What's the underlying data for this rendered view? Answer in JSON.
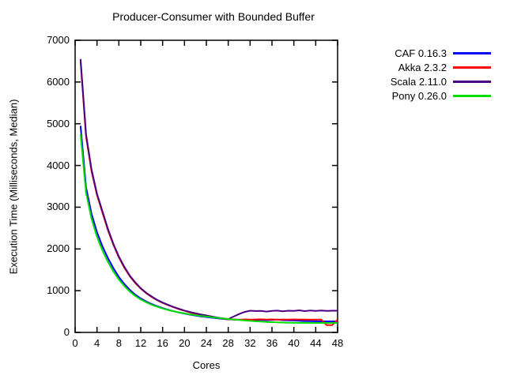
{
  "chart_data": {
    "type": "line",
    "title": "Producer-Consumer with Bounded Buffer",
    "xlabel": "Cores",
    "ylabel": "Execution Time (Milliseconds, Median)",
    "xlim": [
      0,
      48
    ],
    "ylim": [
      0,
      7000
    ],
    "xticks": [
      0,
      4,
      8,
      12,
      16,
      20,
      24,
      28,
      32,
      36,
      40,
      44,
      48
    ],
    "yticks": [
      0,
      1000,
      2000,
      3000,
      4000,
      5000,
      6000,
      7000
    ],
    "grid": false,
    "legend_position": "outside-right",
    "border_color": "#000000",
    "x": [
      1,
      2,
      3,
      4,
      5,
      6,
      7,
      8,
      9,
      10,
      11,
      12,
      13,
      14,
      15,
      16,
      17,
      18,
      19,
      20,
      21,
      22,
      23,
      24,
      25,
      26,
      27,
      28,
      29,
      30,
      31,
      32,
      33,
      34,
      35,
      36,
      37,
      38,
      39,
      40,
      41,
      42,
      43,
      44,
      45,
      46,
      47,
      48
    ],
    "series": [
      {
        "name": "CAF 0.16.3",
        "color": "#0000ff",
        "values": [
          4950,
          3480,
          2840,
          2400,
          2060,
          1780,
          1540,
          1330,
          1160,
          1020,
          905,
          815,
          740,
          680,
          628,
          583,
          543,
          508,
          477,
          450,
          425,
          403,
          383,
          368,
          352,
          338,
          324,
          312,
          306,
          304,
          300,
          296,
          298,
          300,
          294,
          299,
          307,
          294,
          290,
          285,
          278,
          272,
          268,
          266,
          265,
          264,
          264,
          263
        ]
      },
      {
        "name": "Akka 2.3.2",
        "color": "#ff0000",
        "values": [
          6500,
          4700,
          3860,
          3290,
          2870,
          2450,
          2100,
          1800,
          1550,
          1345,
          1185,
          1050,
          940,
          850,
          772,
          708,
          652,
          603,
          558,
          518,
          478,
          440,
          410,
          390,
          370,
          350,
          332,
          314,
          310,
          305,
          312,
          306,
          310,
          315,
          308,
          312,
          304,
          310,
          306,
          312,
          306,
          310,
          305,
          308,
          306,
          175,
          175,
          300
        ]
      },
      {
        "name": "Scala 2.11.0",
        "color": "#4b0082",
        "values": [
          6550,
          4750,
          3900,
          3320,
          2900,
          2480,
          2120,
          1820,
          1570,
          1360,
          1200,
          1060,
          950,
          860,
          780,
          715,
          660,
          610,
          565,
          525,
          490,
          460,
          432,
          406,
          381,
          357,
          336,
          320,
          380,
          440,
          490,
          520,
          512,
          516,
          500,
          516,
          522,
          506,
          520,
          514,
          530,
          510,
          526,
          514,
          526,
          514,
          520,
          520
        ]
      },
      {
        "name": "Pony 0.26.0",
        "color": "#00dd00",
        "values": [
          4750,
          3350,
          2720,
          2290,
          1960,
          1690,
          1460,
          1270,
          1110,
          980,
          875,
          790,
          720,
          663,
          615,
          574,
          538,
          507,
          480,
          456,
          434,
          414,
          396,
          380,
          364,
          350,
          336,
          322,
          309,
          297,
          286,
          276,
          267,
          259,
          252,
          246,
          241,
          237,
          233,
          230,
          228,
          232,
          229,
          227,
          229,
          227,
          229,
          227
        ]
      }
    ]
  }
}
